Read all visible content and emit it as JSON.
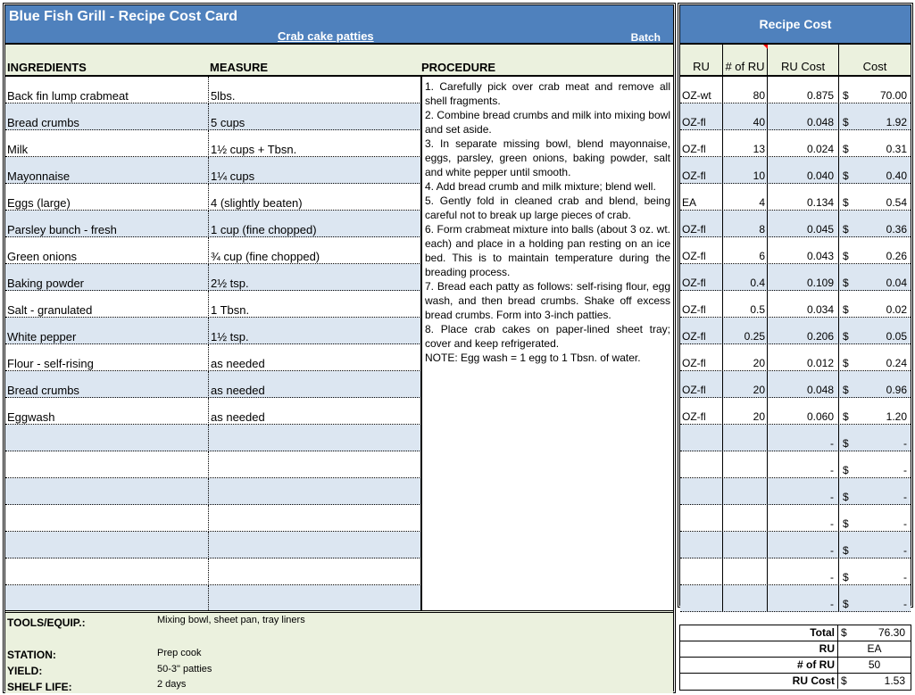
{
  "header": {
    "title": "Blue Fish Grill - Recipe Cost Card",
    "recipe_name": "Crab cake patties",
    "batch_label": "Batch"
  },
  "columns": {
    "ingredients": "INGREDIENTS",
    "measure": "MEASURE",
    "procedure": "PROCEDURE"
  },
  "ingredients": [
    {
      "name": "Back fin lump crabmeat",
      "measure": "5lbs."
    },
    {
      "name": "Bread crumbs",
      "measure": "5 cups"
    },
    {
      "name": "Milk",
      "measure": "1½ cups + Tbsn."
    },
    {
      "name": "Mayonnaise",
      "measure": "1¼ cups"
    },
    {
      "name": "Eggs (large)",
      "measure": "4 (slightly beaten)"
    },
    {
      "name": "Parsley bunch - fresh",
      "measure": "1 cup (fine chopped)"
    },
    {
      "name": "Green onions",
      "measure": "¾ cup (fine chopped)"
    },
    {
      "name": "Baking powder",
      "measure": "2½ tsp."
    },
    {
      "name": "Salt - granulated",
      "measure": "1 Tbsn."
    },
    {
      "name": "White pepper",
      "measure": "1½ tsp."
    },
    {
      "name": "Flour - self-rising",
      "measure": "as needed"
    },
    {
      "name": "Bread crumbs",
      "measure": "as needed"
    },
    {
      "name": "Eggwash",
      "measure": "as needed"
    },
    {
      "name": "",
      "measure": ""
    },
    {
      "name": "",
      "measure": ""
    },
    {
      "name": "",
      "measure": ""
    },
    {
      "name": "",
      "measure": ""
    },
    {
      "name": "",
      "measure": ""
    },
    {
      "name": "",
      "measure": ""
    },
    {
      "name": "",
      "measure": ""
    }
  ],
  "procedure": [
    "1. Carefully pick over crab meat and remove all shell fragments.",
    "2. Combine bread crumbs and milk into mixing bowl and set aside.",
    "3. In separate missing bowl, blend mayonnaise, eggs, parsley, green onions, baking powder, salt and white pepper until smooth.",
    "4. Add bread crumb and milk mixture; blend well.",
    "5. Gently fold in cleaned crab and blend, being careful not to break up large pieces of crab.",
    "6. Form crabmeat mixture into balls (about 3 oz. wt. each) and place in a holding pan resting on an ice bed. This is to maintain temperature during the breading process.",
    "7. Bread each patty as follows: self-rising flour, egg wash, and then bread crumbs. Shake off excess bread crumbs. Form into 3-inch patties.",
    "8. Place crab cakes on paper-lined sheet tray; cover and keep refrigerated.",
    "NOTE: Egg wash = 1 egg to 1 Tbsn. of water."
  ],
  "bottom": {
    "tools_label": "TOOLS/EQUIP.:",
    "tools": "Mixing bowl, sheet pan, tray liners",
    "station_label": "STATION:",
    "station": "Prep cook",
    "yield_label": "YIELD:",
    "yield": "50-3\" patties",
    "shelf_label": "SHELF LIFE:",
    "shelf": "2 days"
  },
  "cost": {
    "title": "Recipe Cost",
    "columns": {
      "ru": "RU",
      "num_ru": "# of RU",
      "ru_cost": "RU Cost",
      "cost": "Cost"
    },
    "rows": [
      {
        "ru": "OZ-wt",
        "num": "80",
        "ru_cost": "0.875",
        "cur": "$",
        "cost": "70.00"
      },
      {
        "ru": "OZ-fl",
        "num": "40",
        "ru_cost": "0.048",
        "cur": "$",
        "cost": "1.92"
      },
      {
        "ru": "OZ-fl",
        "num": "13",
        "ru_cost": "0.024",
        "cur": "$",
        "cost": "0.31"
      },
      {
        "ru": "OZ-fl",
        "num": "10",
        "ru_cost": "0.040",
        "cur": "$",
        "cost": "0.40"
      },
      {
        "ru": "EA",
        "num": "4",
        "ru_cost": "0.134",
        "cur": "$",
        "cost": "0.54"
      },
      {
        "ru": "OZ-fl",
        "num": "8",
        "ru_cost": "0.045",
        "cur": "$",
        "cost": "0.36"
      },
      {
        "ru": "OZ-fl",
        "num": "6",
        "ru_cost": "0.043",
        "cur": "$",
        "cost": "0.26"
      },
      {
        "ru": "OZ-fl",
        "num": "0.4",
        "ru_cost": "0.109",
        "cur": "$",
        "cost": "0.04"
      },
      {
        "ru": "OZ-fl",
        "num": "0.5",
        "ru_cost": "0.034",
        "cur": "$",
        "cost": "0.02"
      },
      {
        "ru": "OZ-fl",
        "num": "0.25",
        "ru_cost": "0.206",
        "cur": "$",
        "cost": "0.05"
      },
      {
        "ru": "OZ-fl",
        "num": "20",
        "ru_cost": "0.012",
        "cur": "$",
        "cost": "0.24"
      },
      {
        "ru": "OZ-fl",
        "num": "20",
        "ru_cost": "0.048",
        "cur": "$",
        "cost": "0.96"
      },
      {
        "ru": "OZ-fl",
        "num": "20",
        "ru_cost": "0.060",
        "cur": "$",
        "cost": "1.20"
      },
      {
        "ru": "",
        "num": "",
        "ru_cost": "-",
        "cur": "$",
        "cost": "-"
      },
      {
        "ru": "",
        "num": "",
        "ru_cost": "-",
        "cur": "$",
        "cost": "-"
      },
      {
        "ru": "",
        "num": "",
        "ru_cost": "-",
        "cur": "$",
        "cost": "-"
      },
      {
        "ru": "",
        "num": "",
        "ru_cost": "-",
        "cur": "$",
        "cost": "-"
      },
      {
        "ru": "",
        "num": "",
        "ru_cost": "-",
        "cur": "$",
        "cost": "-"
      },
      {
        "ru": "",
        "num": "",
        "ru_cost": "-",
        "cur": "$",
        "cost": "-"
      },
      {
        "ru": "",
        "num": "",
        "ru_cost": "-",
        "cur": "$",
        "cost": "-"
      }
    ],
    "totals": [
      {
        "label": "Total",
        "cur": "$",
        "value": "76.30"
      },
      {
        "label": "RU",
        "cur": "",
        "value": "EA"
      },
      {
        "label": "# of RU",
        "cur": "",
        "value": "50"
      },
      {
        "label": "RU Cost",
        "cur": "$",
        "value": "1.53"
      }
    ]
  },
  "colors": {
    "header_blue": "#4f81bd",
    "header_green": "#ebf1de",
    "row_alt": "#dce6f1",
    "comment_marker": "#ff0000"
  }
}
